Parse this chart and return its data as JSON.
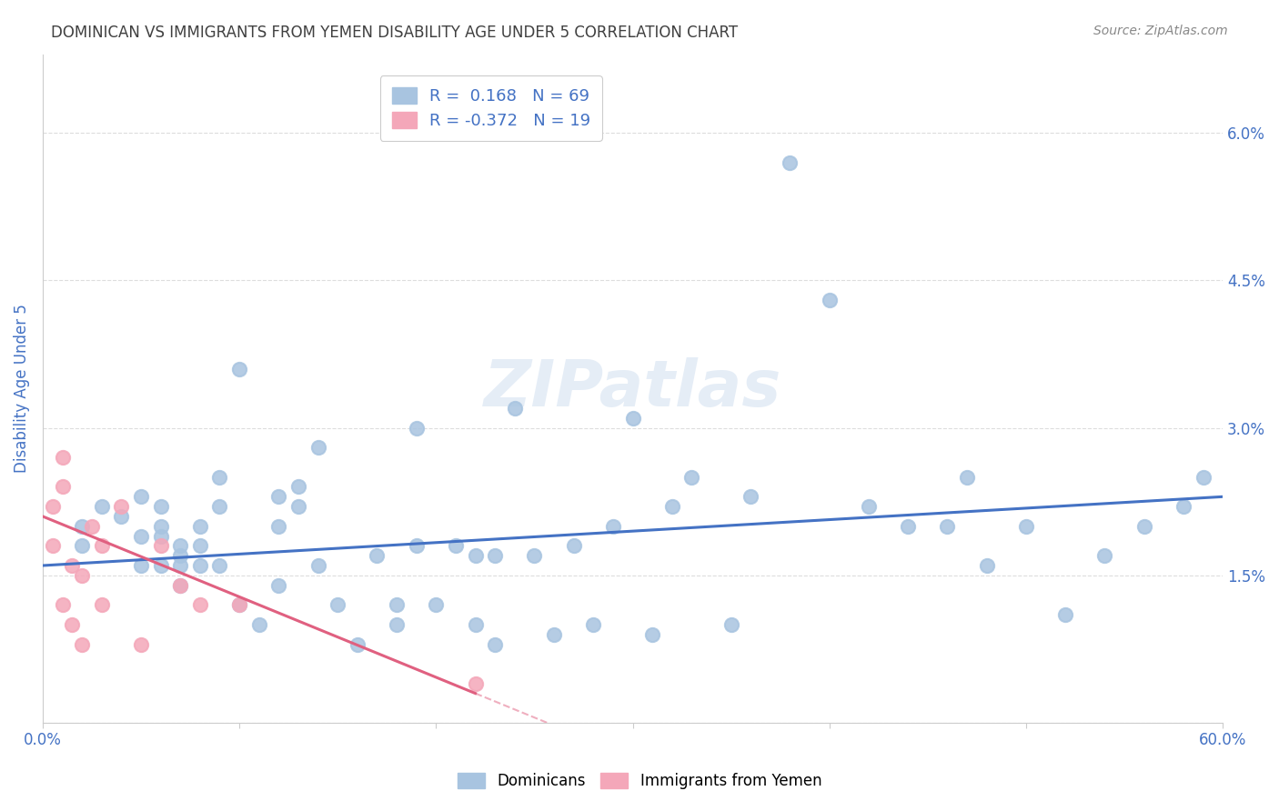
{
  "title": "DOMINICAN VS IMMIGRANTS FROM YEMEN DISABILITY AGE UNDER 5 CORRELATION CHART",
  "source": "Source: ZipAtlas.com",
  "ylabel": "Disability Age Under 5",
  "xlim": [
    0.0,
    0.6
  ],
  "ylim": [
    0.0,
    0.068
  ],
  "yticks": [
    0.0,
    0.015,
    0.03,
    0.045,
    0.06
  ],
  "ytick_labels": [
    "",
    "1.5%",
    "3.0%",
    "4.5%",
    "6.0%"
  ],
  "xticks": [
    0.0,
    0.1,
    0.2,
    0.3,
    0.4,
    0.5,
    0.6
  ],
  "xtick_labels": [
    "0.0%",
    "",
    "",
    "",
    "",
    "",
    "60.0%"
  ],
  "legend_r1": "R =  0.168   N = 69",
  "legend_r2": "R = -0.372   N = 19",
  "blue_color": "#a8c4e0",
  "pink_color": "#f4a7b9",
  "blue_line_color": "#4472c4",
  "pink_line_color": "#e06080",
  "title_color": "#404040",
  "axis_label_color": "#4472c4",
  "watermark": "ZIPatlas",
  "dominicans_x": [
    0.02,
    0.02,
    0.03,
    0.04,
    0.05,
    0.05,
    0.05,
    0.06,
    0.06,
    0.06,
    0.06,
    0.07,
    0.07,
    0.07,
    0.07,
    0.08,
    0.08,
    0.08,
    0.09,
    0.09,
    0.09,
    0.1,
    0.1,
    0.11,
    0.12,
    0.12,
    0.12,
    0.13,
    0.13,
    0.14,
    0.14,
    0.15,
    0.16,
    0.17,
    0.18,
    0.18,
    0.19,
    0.19,
    0.2,
    0.21,
    0.22,
    0.22,
    0.23,
    0.23,
    0.24,
    0.25,
    0.26,
    0.27,
    0.28,
    0.29,
    0.3,
    0.31,
    0.32,
    0.33,
    0.35,
    0.36,
    0.38,
    0.4,
    0.42,
    0.44,
    0.46,
    0.47,
    0.48,
    0.5,
    0.52,
    0.54,
    0.56,
    0.58,
    0.59
  ],
  "dominicans_y": [
    0.02,
    0.018,
    0.022,
    0.021,
    0.023,
    0.019,
    0.016,
    0.02,
    0.022,
    0.019,
    0.016,
    0.018,
    0.017,
    0.016,
    0.014,
    0.02,
    0.018,
    0.016,
    0.025,
    0.022,
    0.016,
    0.036,
    0.012,
    0.01,
    0.014,
    0.02,
    0.023,
    0.022,
    0.024,
    0.028,
    0.016,
    0.012,
    0.008,
    0.017,
    0.012,
    0.01,
    0.03,
    0.018,
    0.012,
    0.018,
    0.017,
    0.01,
    0.008,
    0.017,
    0.032,
    0.017,
    0.009,
    0.018,
    0.01,
    0.02,
    0.031,
    0.009,
    0.022,
    0.025,
    0.01,
    0.023,
    0.057,
    0.043,
    0.022,
    0.02,
    0.02,
    0.025,
    0.016,
    0.02,
    0.011,
    0.017,
    0.02,
    0.022,
    0.025
  ],
  "yemen_x": [
    0.005,
    0.005,
    0.01,
    0.01,
    0.01,
    0.015,
    0.015,
    0.02,
    0.02,
    0.025,
    0.03,
    0.03,
    0.04,
    0.05,
    0.06,
    0.07,
    0.08,
    0.1,
    0.22
  ],
  "yemen_y": [
    0.022,
    0.018,
    0.027,
    0.024,
    0.012,
    0.016,
    0.01,
    0.008,
    0.015,
    0.02,
    0.018,
    0.012,
    0.022,
    0.008,
    0.018,
    0.014,
    0.012,
    0.012,
    0.004
  ],
  "blue_trend_x": [
    0.0,
    0.6
  ],
  "blue_trend_y": [
    0.016,
    0.023
  ],
  "pink_trend_x": [
    0.0,
    0.22
  ],
  "pink_trend_y": [
    0.021,
    0.003
  ]
}
